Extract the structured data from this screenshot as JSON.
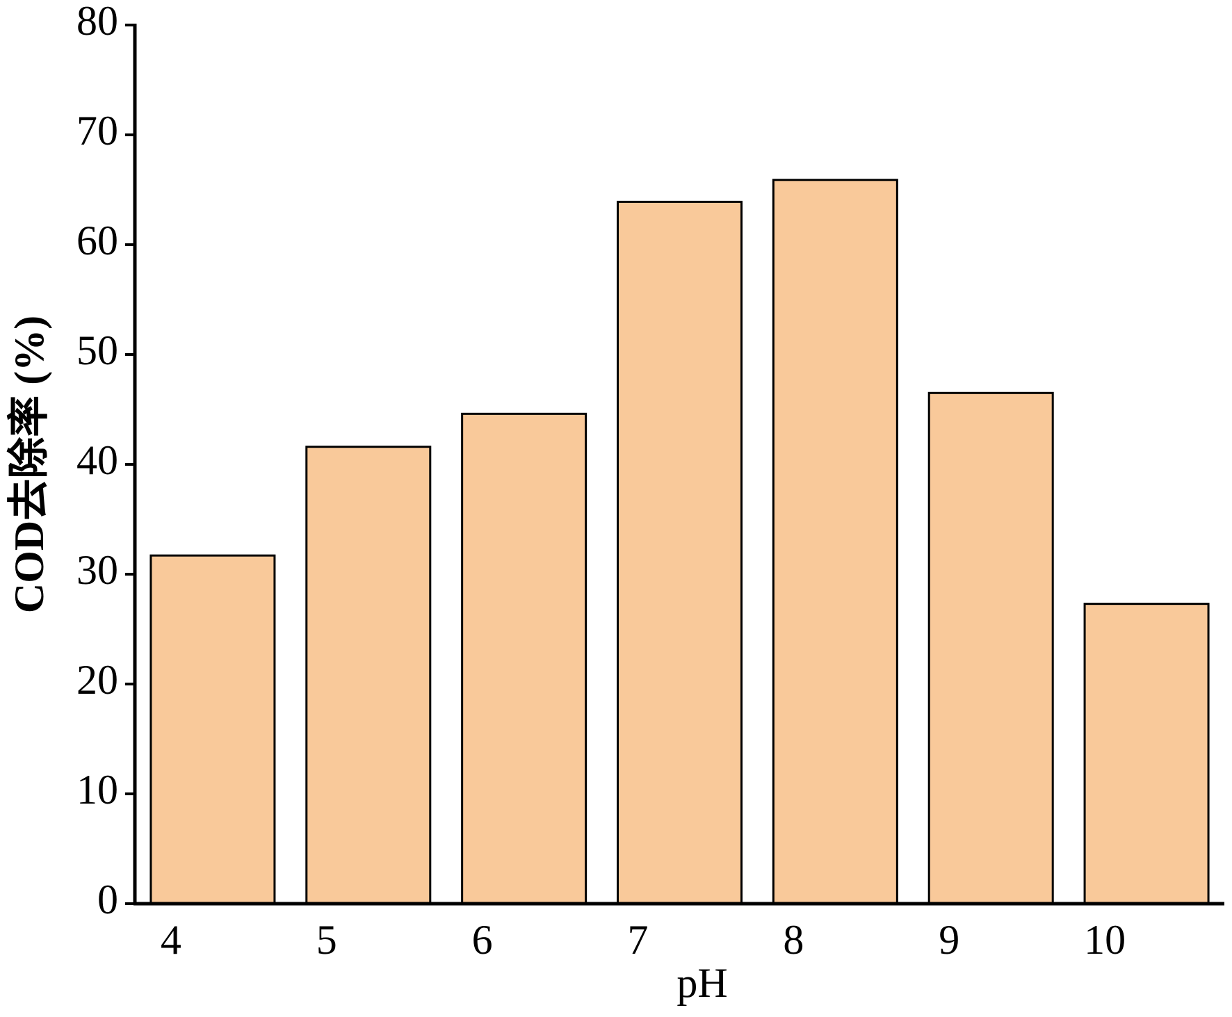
{
  "chart_data": {
    "type": "bar",
    "x_label": "pH",
    "y_label": "COD去除率 (%)",
    "categories": [
      "4",
      "5",
      "6",
      "7",
      "8",
      "9",
      "10"
    ],
    "values": [
      31.7,
      41.6,
      44.6,
      63.9,
      65.9,
      46.5,
      27.3
    ],
    "color": "#f9c99a",
    "ylim": [
      0,
      80
    ],
    "yticks": [
      0,
      10,
      20,
      30,
      40,
      50,
      60,
      70,
      80
    ],
    "grid": false
  }
}
